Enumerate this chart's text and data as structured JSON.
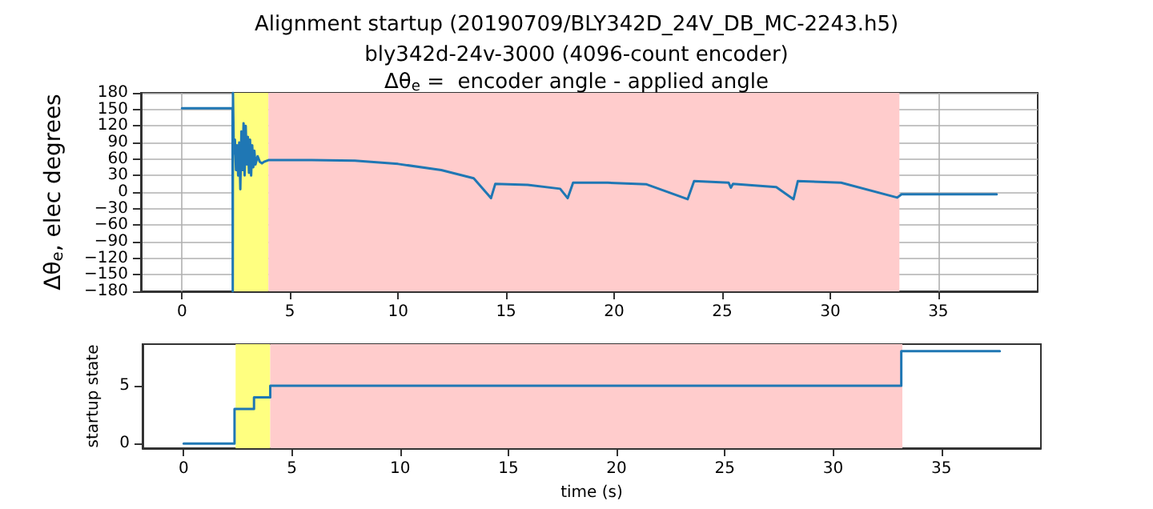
{
  "chart_data": [
    {
      "type": "line",
      "title": "Alignment startup (20190709/BLY342D_24V_DB_MC-2243.h5)",
      "subtitle": "bly342d-24v-3000 (4096-count encoder)\nΔθ$_{e}$ =  encoder angle - applied angle",
      "ylabel": "Δθ$_{e}$, elec degrees",
      "series": [
        {
          "color": "#1f77b4",
          "x": [
            0,
            2.34,
            2.35,
            2.36,
            2.4,
            2.45,
            2.5,
            2.55,
            2.6,
            2.65,
            2.7,
            2.75,
            2.8,
            2.85,
            2.9,
            2.95,
            3.0,
            3.05,
            3.1,
            3.15,
            3.2,
            3.25,
            3.3,
            3.35,
            3.4,
            3.5,
            3.6,
            3.7,
            3.8,
            4.0,
            6,
            8,
            10,
            12,
            13.5,
            14.3,
            14.5,
            16,
            17.5,
            17.85,
            18.1,
            19.7,
            21.5,
            23.4,
            23.7,
            25.3,
            25.4,
            25.5,
            27.5,
            28.3,
            28.5,
            30.5,
            33.1,
            33.3,
            37.7
          ],
          "values": [
            152,
            152,
            -180,
            180,
            70,
            95,
            40,
            85,
            30,
            90,
            5,
            110,
            40,
            125,
            30,
            120,
            50,
            100,
            35,
            95,
            30,
            85,
            45,
            75,
            50,
            65,
            55,
            52,
            55,
            58,
            58,
            57,
            51,
            40,
            25,
            -11,
            15,
            13,
            6,
            -11,
            17,
            17,
            14,
            -13,
            20,
            17,
            8,
            15,
            9,
            -13,
            20,
            17,
            -10,
            -4,
            -4
          ]
        }
      ],
      "xlim": [
        -1.9,
        39.6
      ],
      "xticks": [
        0,
        5,
        10,
        15,
        20,
        25,
        30,
        35
      ],
      "ylim": [
        -180,
        180
      ],
      "yticks": [
        -180,
        -150,
        -120,
        -90,
        -60,
        -30,
        0,
        30,
        60,
        90,
        120,
        150,
        180
      ],
      "bands": [
        {
          "axis": "x",
          "from": 2.4,
          "to": 4.0,
          "color": "#ffff80"
        },
        {
          "axis": "x",
          "from": 4.0,
          "to": 33.2,
          "color": "#ffcccc"
        }
      ],
      "grid": true,
      "marker": "none",
      "line_style": "solid"
    },
    {
      "type": "step",
      "xlabel": "time (s)",
      "ylabel": "startup state",
      "series": [
        {
          "color": "#1f77b4",
          "x": [
            0,
            2.35,
            3.25,
            4.0,
            33.15,
            37.7
          ],
          "values": [
            0,
            3,
            4,
            5,
            8,
            8
          ]
        }
      ],
      "xlim": [
        -1.9,
        39.6
      ],
      "xticks": [
        0,
        5,
        10,
        15,
        20,
        25,
        30,
        35
      ],
      "ylim": [
        -0.4,
        8.6
      ],
      "yticks": [
        0,
        5
      ],
      "bands": [
        {
          "axis": "x",
          "from": 2.4,
          "to": 4.0,
          "color": "#ffff80"
        },
        {
          "axis": "x",
          "from": 4.0,
          "to": 33.2,
          "color": "#ffcccc"
        }
      ],
      "grid": false,
      "marker": "none",
      "line_style": "solid"
    }
  ]
}
